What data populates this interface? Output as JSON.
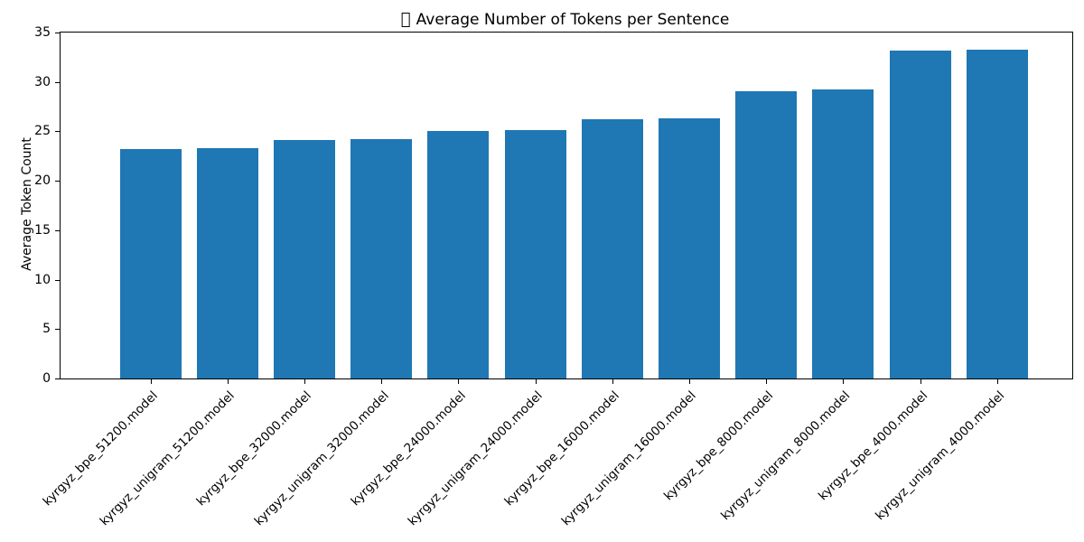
{
  "figure_title": {
    "icon": "missing-glyph",
    "text": "Average Number of Tokens per Sentence"
  },
  "chart_data": {
    "type": "bar",
    "title": "▯ Average Number of Tokens per Sentence",
    "categories": [
      "kyrgyz_bpe_51200.model",
      "kyrgyz_unigram_51200.model",
      "kyrgyz_bpe_32000.model",
      "kyrgyz_unigram_32000.model",
      "kyrgyz_bpe_24000.model",
      "kyrgyz_unigram_24000.model",
      "kyrgyz_bpe_16000.model",
      "kyrgyz_unigram_16000.model",
      "kyrgyz_bpe_8000.model",
      "kyrgyz_unigram_8000.model",
      "kyrgyz_bpe_4000.model",
      "kyrgyz_unigram_4000.model"
    ],
    "values": [
      23.2,
      23.3,
      24.1,
      24.2,
      25.0,
      25.1,
      26.2,
      26.3,
      29.1,
      29.2,
      33.2,
      33.3
    ],
    "xlabel": "",
    "ylabel": "Average Token Count",
    "ylim": [
      0,
      35
    ],
    "yticks": [
      0,
      5,
      10,
      15,
      20,
      25,
      30,
      35
    ],
    "bar_color": "#1f77b4",
    "background_color": "#ffffff",
    "grid": false,
    "legend": false,
    "x_tick_rotation_deg": 45
  }
}
